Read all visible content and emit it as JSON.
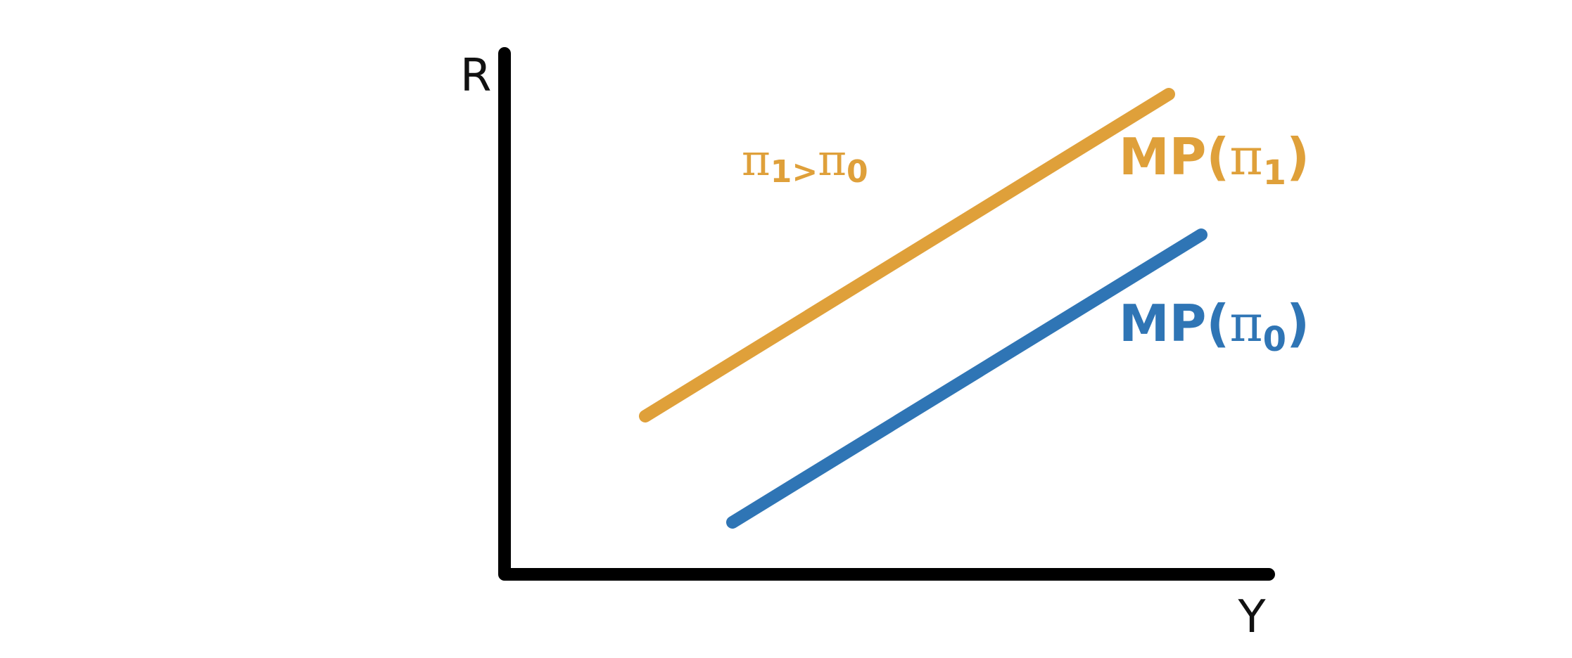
{
  "axes": {
    "y_label": "R",
    "x_label": "Y",
    "color": "#000000"
  },
  "curves": {
    "upper": {
      "label_prefix": "MP(",
      "label_pi": "π",
      "label_subscript": "1",
      "label_suffix": ")",
      "color": "#DFA03A"
    },
    "lower": {
      "label_prefix": "MP(",
      "label_pi": "π",
      "label_subscript": "0",
      "label_suffix": ")",
      "color": "#2F75B5"
    }
  },
  "annotation": {
    "pi_a": "π",
    "sub_a": "1",
    "relation": ">",
    "pi_b": "π",
    "sub_b": "0",
    "color": "#DFA03A"
  }
}
